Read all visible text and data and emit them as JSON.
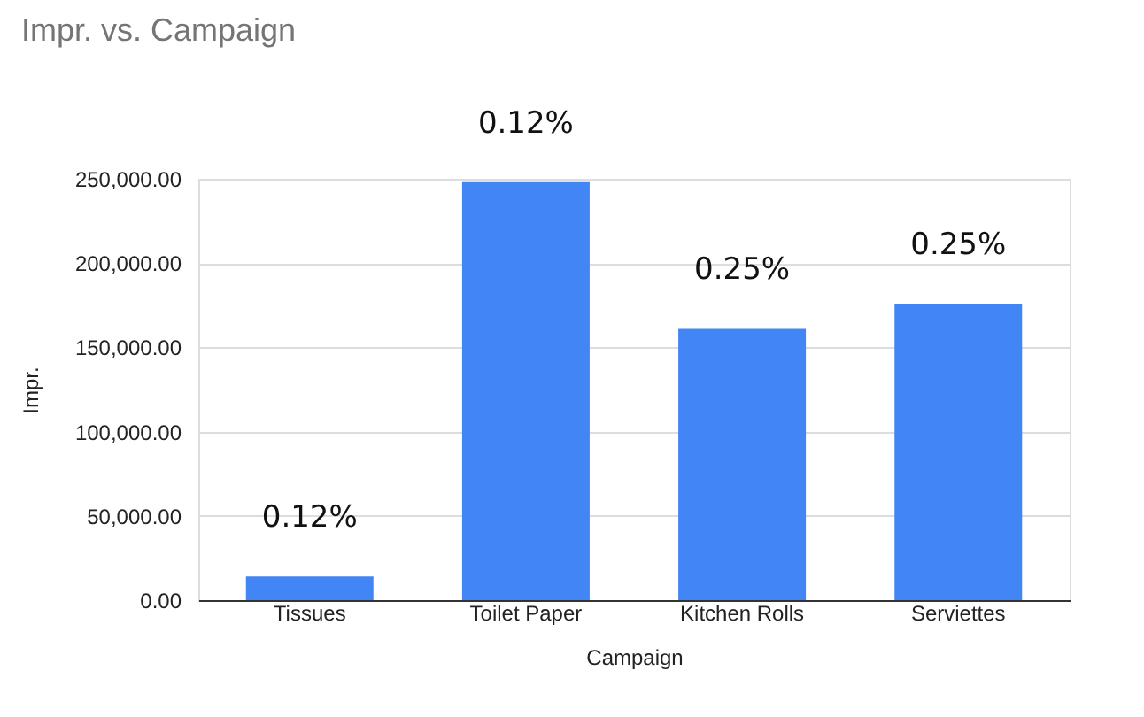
{
  "chart_data": {
    "type": "bar",
    "title": "Impr. vs. Campaign",
    "xlabel": "Campaign",
    "ylabel": "Impr.",
    "categories": [
      "Tissues",
      "Toilet Paper",
      "Kitchen Rolls",
      "Serviettes"
    ],
    "values": [
      14000,
      248000,
      161000,
      176000
    ],
    "color": "#4285f4",
    "ylim": [
      0,
      250000
    ],
    "yticks": [
      {
        "value": 0,
        "label": "0.00"
      },
      {
        "value": 50000,
        "label": "50,000.00"
      },
      {
        "value": 100000,
        "label": "100,000.00"
      },
      {
        "value": 150000,
        "label": "150,000.00"
      },
      {
        "value": 200000,
        "label": "200,000.00"
      },
      {
        "value": 250000,
        "label": "250,000.00"
      }
    ],
    "grid": "y",
    "annotations": [
      "0.12%",
      "0.12%",
      "0.25%",
      "0.25%"
    ]
  }
}
